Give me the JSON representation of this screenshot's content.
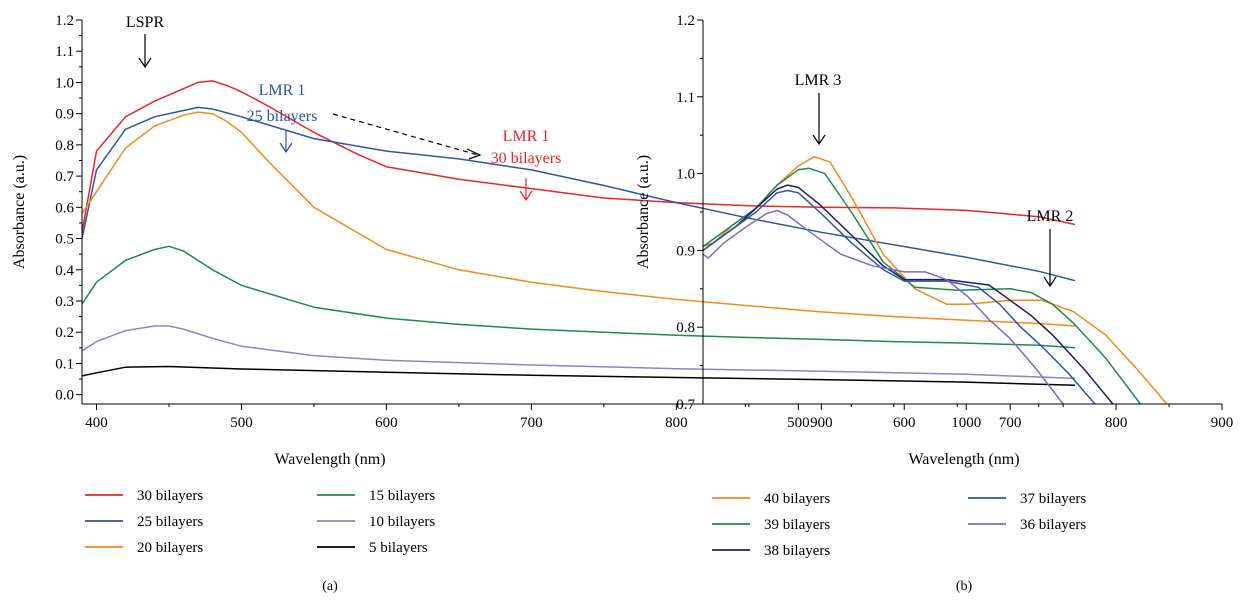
{
  "chart_data": [
    {
      "panel": "(a)",
      "type": "line",
      "xlabel": "Wavelength (nm)",
      "ylabel": "Absorbance (a.u.)",
      "xlim": [
        390,
        1075
      ],
      "ylim": [
        -0.03,
        1.2
      ],
      "xticks": [
        400,
        500,
        600,
        700,
        800,
        900,
        1000
      ],
      "yticks": [
        0.0,
        0.1,
        0.2,
        0.3,
        0.4,
        0.5,
        0.6,
        0.7,
        0.8,
        0.9,
        1.0,
        1.1,
        1.2
      ],
      "ytick_labels": [
        "0.0",
        "0.1",
        "0.2",
        "0.3",
        "0.4",
        "0.5",
        "0.6",
        "0.7",
        "0.8",
        "0.9",
        "1.0",
        "1.1",
        "1.2"
      ],
      "grid": false,
      "legend_position": "below",
      "series": [
        {
          "name": "30 bilayers",
          "color": "#e8262b",
          "x": [
            390,
            400,
            420,
            440,
            460,
            470,
            480,
            490,
            500,
            520,
            550,
            580,
            600,
            650,
            700,
            750,
            800,
            850,
            900,
            950,
            1000,
            1050,
            1075
          ],
          "y": [
            0.52,
            0.78,
            0.89,
            0.94,
            0.98,
            1.0,
            1.005,
            0.99,
            0.97,
            0.92,
            0.84,
            0.77,
            0.73,
            0.69,
            0.66,
            0.63,
            0.615,
            0.605,
            0.6,
            0.598,
            0.59,
            0.57,
            0.545
          ]
        },
        {
          "name": "25 bilayers",
          "color": "#2f55a4",
          "x": [
            390,
            400,
            420,
            440,
            460,
            470,
            480,
            500,
            550,
            600,
            650,
            700,
            750,
            800,
            850,
            900,
            950,
            1000,
            1050,
            1075
          ],
          "y": [
            0.5,
            0.72,
            0.85,
            0.89,
            0.91,
            0.92,
            0.915,
            0.89,
            0.82,
            0.78,
            0.755,
            0.72,
            0.67,
            0.615,
            0.565,
            0.52,
            0.48,
            0.44,
            0.395,
            0.365
          ]
        },
        {
          "name": "20 bilayers",
          "color": "#f28a1e",
          "x": [
            390,
            400,
            420,
            440,
            460,
            470,
            480,
            490,
            500,
            520,
            550,
            600,
            650,
            700,
            750,
            800,
            850,
            900,
            950,
            1000,
            1050,
            1075
          ],
          "y": [
            0.58,
            0.65,
            0.79,
            0.86,
            0.895,
            0.905,
            0.9,
            0.875,
            0.84,
            0.74,
            0.6,
            0.465,
            0.4,
            0.36,
            0.33,
            0.305,
            0.285,
            0.265,
            0.25,
            0.238,
            0.228,
            0.22
          ]
        },
        {
          "name": "15 bilayers",
          "color": "#1f8a4c",
          "x": [
            390,
            400,
            420,
            440,
            450,
            460,
            480,
            500,
            550,
            600,
            650,
            700,
            750,
            800,
            850,
            900,
            950,
            1000,
            1050,
            1075
          ],
          "y": [
            0.29,
            0.36,
            0.43,
            0.465,
            0.475,
            0.46,
            0.4,
            0.35,
            0.28,
            0.245,
            0.225,
            0.21,
            0.2,
            0.19,
            0.183,
            0.177,
            0.17,
            0.165,
            0.158,
            0.15
          ]
        },
        {
          "name": "10 bilayers",
          "color": "#8a86c4",
          "x": [
            390,
            400,
            420,
            440,
            450,
            460,
            480,
            500,
            550,
            600,
            700,
            800,
            900,
            1000,
            1075
          ],
          "y": [
            0.14,
            0.17,
            0.205,
            0.22,
            0.22,
            0.21,
            0.18,
            0.155,
            0.125,
            0.11,
            0.095,
            0.083,
            0.075,
            0.065,
            0.052
          ]
        },
        {
          "name": "5 bilayers",
          "color": "#000000",
          "x": [
            390,
            400,
            420,
            450,
            500,
            600,
            700,
            800,
            900,
            1000,
            1075
          ],
          "y": [
            0.06,
            0.07,
            0.088,
            0.09,
            0.082,
            0.072,
            0.062,
            0.055,
            0.048,
            0.04,
            0.03
          ]
        }
      ],
      "annotations": [
        {
          "text": "LSPR",
          "color": "#000000"
        },
        {
          "text": "LMR 1",
          "text2": "25 bilayers",
          "color": "#2f55a4"
        },
        {
          "text": "LMR 1",
          "text2": "30 bilayers",
          "color": "#e8262b"
        }
      ]
    },
    {
      "panel": "(b)",
      "type": "line",
      "xlabel": "Wavelength (nm)",
      "ylabel": "Absorbance (a.u.)",
      "xlim": [
        410,
        900
      ],
      "ylim": [
        0.7,
        1.2
      ],
      "xticks": [
        500,
        600,
        700,
        800,
        900
      ],
      "yticks": [
        0.7,
        0.8,
        0.9,
        1.0,
        1.1,
        1.2
      ],
      "ytick_labels": [
        "0.7",
        "0.8",
        "0.9",
        "1.0",
        "1.1",
        "1.2"
      ],
      "grid": false,
      "legend_position": "below",
      "series": [
        {
          "name": "40 bilayers",
          "color": "#f28a1e",
          "x": [
            410,
            420,
            440,
            460,
            480,
            500,
            515,
            530,
            550,
            580,
            610,
            640,
            660,
            700,
            730,
            760,
            790,
            820,
            848
          ],
          "y": [
            0.905,
            0.91,
            0.935,
            0.955,
            0.985,
            1.01,
            1.022,
            1.015,
            0.97,
            0.895,
            0.85,
            0.83,
            0.83,
            0.835,
            0.835,
            0.82,
            0.79,
            0.745,
            0.7
          ]
        },
        {
          "name": "39 bilayers",
          "color": "#1f8a4c",
          "x": [
            410,
            420,
            440,
            460,
            480,
            500,
            510,
            525,
            550,
            580,
            610,
            650,
            700,
            720,
            740,
            760,
            790,
            823
          ],
          "y": [
            0.905,
            0.915,
            0.935,
            0.955,
            0.985,
            1.005,
            1.007,
            1.0,
            0.95,
            0.885,
            0.852,
            0.848,
            0.85,
            0.845,
            0.83,
            0.805,
            0.76,
            0.7
          ]
        },
        {
          "name": "38 bilayers",
          "color": "#1e1e5c",
          "x": [
            410,
            420,
            440,
            460,
            480,
            490,
            500,
            520,
            550,
            580,
            600,
            640,
            680,
            700,
            720,
            740,
            770,
            797
          ],
          "y": [
            0.9,
            0.91,
            0.93,
            0.955,
            0.98,
            0.985,
            0.982,
            0.96,
            0.92,
            0.88,
            0.862,
            0.862,
            0.855,
            0.835,
            0.815,
            0.79,
            0.745,
            0.7
          ]
        },
        {
          "name": "37 bilayers",
          "color": "#2f55a4",
          "x": [
            410,
            420,
            440,
            460,
            480,
            490,
            500,
            520,
            550,
            580,
            600,
            640,
            670,
            690,
            710,
            730,
            755,
            780
          ],
          "y": [
            0.9,
            0.91,
            0.93,
            0.95,
            0.975,
            0.978,
            0.975,
            0.95,
            0.91,
            0.875,
            0.86,
            0.86,
            0.852,
            0.83,
            0.8,
            0.775,
            0.74,
            0.7
          ]
        },
        {
          "name": "36 bilayers",
          "color": "#7b6cc0",
          "x": [
            410,
            415,
            430,
            450,
            470,
            480,
            490,
            510,
            540,
            570,
            600,
            620,
            640,
            660,
            680,
            700,
            725,
            750
          ],
          "y": [
            0.895,
            0.89,
            0.91,
            0.93,
            0.948,
            0.952,
            0.946,
            0.925,
            0.895,
            0.88,
            0.872,
            0.872,
            0.862,
            0.84,
            0.81,
            0.785,
            0.745,
            0.7
          ]
        }
      ],
      "annotations": [
        {
          "text": "LMR 3",
          "color": "#000000"
        },
        {
          "text": "LMR 2",
          "color": "#000000"
        }
      ]
    }
  ]
}
